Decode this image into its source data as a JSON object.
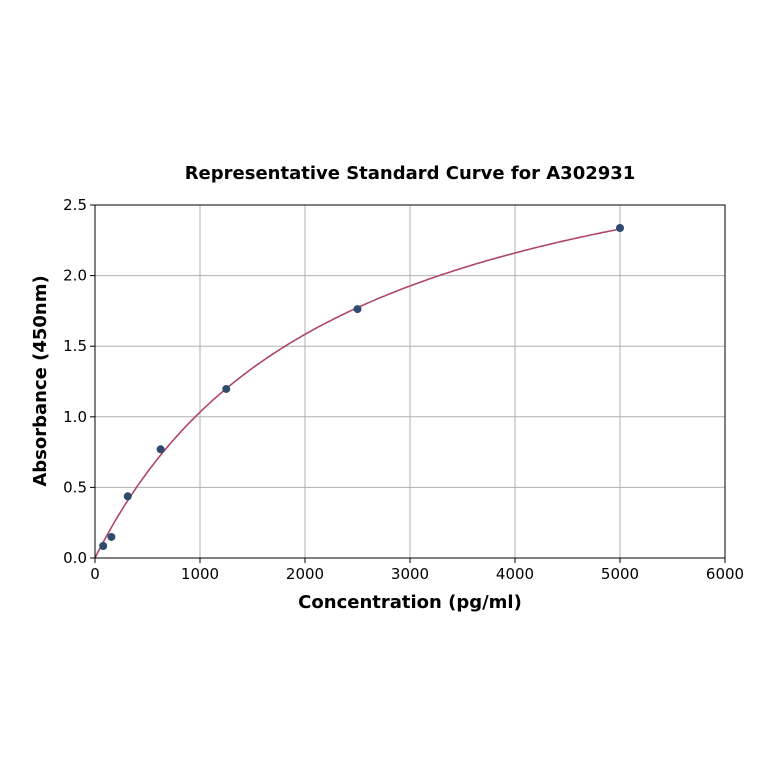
{
  "chart_data": {
    "type": "scatter",
    "title": "Representative Standard Curve for A302931",
    "xlabel": "Concentration (pg/ml)",
    "ylabel": "Absorbance (450nm)",
    "xlim": [
      0,
      6000
    ],
    "ylim": [
      0,
      2.5
    ],
    "xticks": [
      0,
      1000,
      2000,
      3000,
      4000,
      5000,
      6000
    ],
    "yticks": [
      "0.0",
      "0.5",
      "1.0",
      "1.5",
      "2.0",
      "2.5"
    ],
    "grid": true,
    "points": [
      {
        "x": 78,
        "y": 0.085
      },
      {
        "x": 156,
        "y": 0.149
      },
      {
        "x": 312,
        "y": 0.437
      },
      {
        "x": 625,
        "y": 0.77
      },
      {
        "x": 1250,
        "y": 1.197
      },
      {
        "x": 2500,
        "y": 1.763
      },
      {
        "x": 5000,
        "y": 2.337
      }
    ],
    "colors": {
      "points": "#2e4a6e",
      "curve": "#b0466a",
      "grid": "#b0b0b0"
    }
  }
}
